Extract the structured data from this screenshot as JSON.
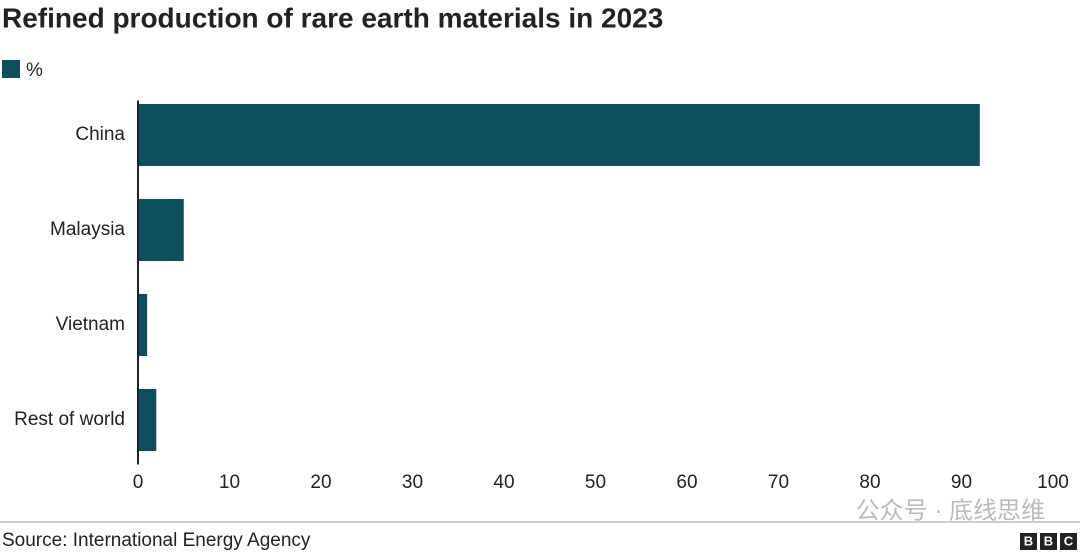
{
  "chart_data": {
    "type": "bar",
    "orientation": "horizontal",
    "title": "Refined production of rare earth materials in 2023",
    "categories": [
      "China",
      "Malaysia",
      "Vietnam",
      "Rest of world"
    ],
    "series": [
      {
        "name": "%",
        "color": "#0d4f5e",
        "values": [
          92,
          5,
          1,
          2
        ]
      }
    ],
    "xlim": [
      0,
      100
    ],
    "xticks": [
      0,
      10,
      20,
      30,
      40,
      50,
      60,
      70,
      80,
      90,
      100
    ],
    "grid": false,
    "legend": "top-left",
    "source": "Source: International Energy Agency",
    "watermark": "公众号 · 底线思维",
    "logo": [
      "B",
      "B",
      "C"
    ]
  }
}
